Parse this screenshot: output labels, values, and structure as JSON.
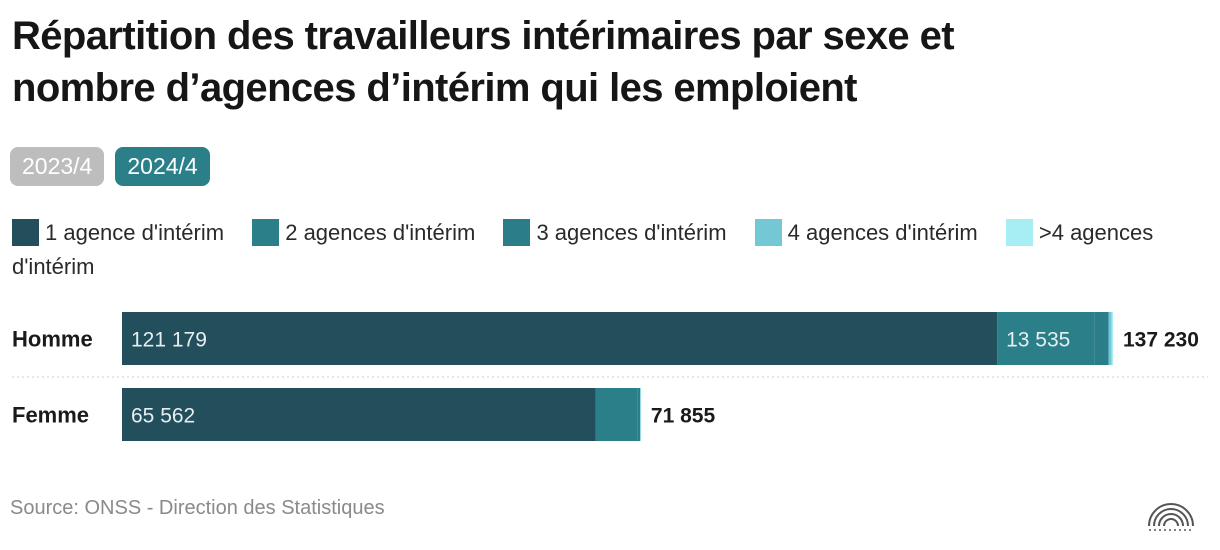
{
  "title_lines": [
    "Répartition des travailleurs intérimaires par sexe et",
    "nombre d’agences d’intérim qui les emploient"
  ],
  "tabs": [
    {
      "label": "2023/4",
      "color": "#bdbdbd",
      "selected": false
    },
    {
      "label": "2024/4",
      "color": "#2a7f89",
      "selected": true
    }
  ],
  "source": "Source: ONSS - Direction des Statistiques",
  "chart_data": {
    "type": "bar",
    "orientation": "horizontal",
    "stacked": true,
    "categories": [
      "Homme",
      "Femme"
    ],
    "series": [
      {
        "name": "1 agence d'intérim",
        "color": "#234e5c",
        "values": [
          121179,
          65562
        ]
      },
      {
        "name": "2 agences d'intérim",
        "color": "#2a7f89",
        "values": [
          13535,
          5780
        ]
      },
      {
        "name": "3 agences d'intérim",
        "color": "#2b7d8a",
        "values": [
          1900,
          410
        ]
      },
      {
        "name": "4 agences d'intérim",
        "color": "#74c7d4",
        "values": [
          430,
          75
        ]
      },
      {
        "name": ">4 agences d'intérim",
        "color": "#a6eef3",
        "values": [
          186,
          28
        ]
      }
    ],
    "segment_labels": [
      [
        "121 179",
        "13 535",
        "",
        "",
        ""
      ],
      [
        "65 562",
        "",
        "",
        "",
        ""
      ]
    ],
    "totals": [
      "137 230",
      "71 855"
    ],
    "xlim": [
      0,
      137230
    ],
    "legend_position": "top",
    "grid": false
  }
}
